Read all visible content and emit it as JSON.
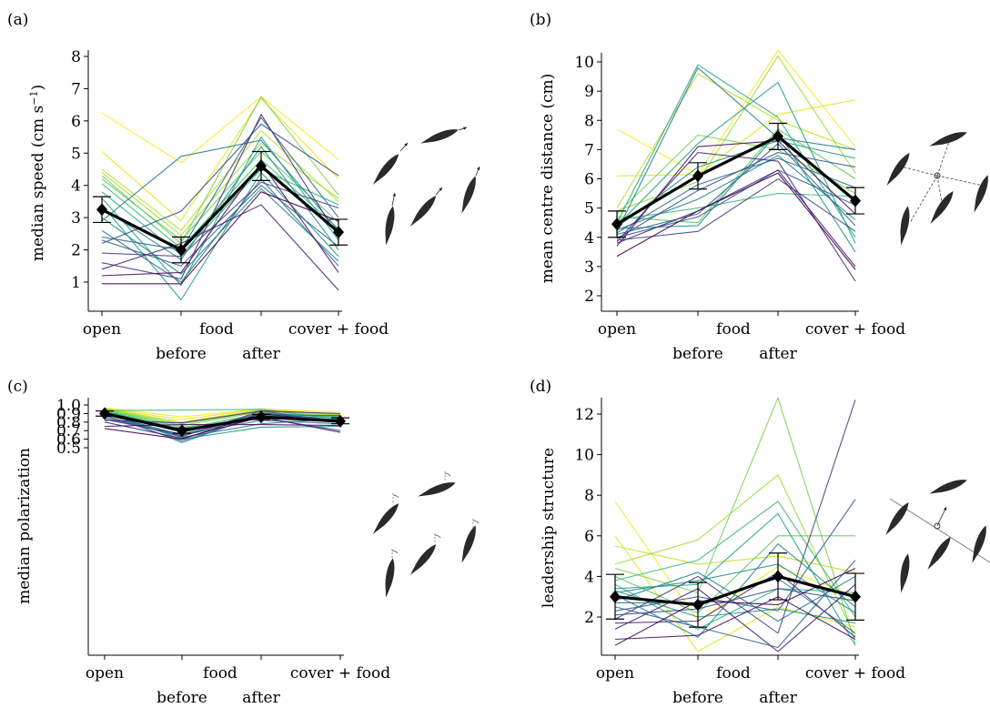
{
  "panel_labels": [
    "(a)",
    "(b)",
    "(c)",
    "(d)"
  ],
  "condition_labels": {
    "open": "open",
    "food": "food",
    "cover_food": "cover + food",
    "before": "before",
    "after": "after"
  },
  "chart_data": [
    {
      "type": "line",
      "panel": "(a)",
      "ylabel": "median speed (cm s−1)",
      "ylabel_main": "median speed (cm s",
      "ylabel_sup": "−1",
      "ylabel_end": ")",
      "categories": [
        "open",
        "before food",
        "after food",
        "cover + food"
      ],
      "yticks": [
        1,
        2,
        3,
        4,
        5,
        6,
        7,
        8
      ],
      "ylim": [
        0.2,
        8.4
      ],
      "mean": {
        "values": [
          3.25,
          2.0,
          4.6,
          2.55
        ],
        "lower": [
          2.85,
          1.6,
          4.15,
          2.15
        ],
        "upper": [
          3.65,
          2.4,
          5.05,
          2.95
        ]
      },
      "series_colors": [
        "#fde725",
        "#e4e419",
        "#bddf26",
        "#a0da39",
        "#7ad151",
        "#5ec962",
        "#3fbc73",
        "#29af7f",
        "#20a486",
        "#1f9a8a",
        "#21918c",
        "#24868e",
        "#287c8e",
        "#2c728e",
        "#31688e",
        "#355f8d",
        "#3b528b",
        "#414487",
        "#46327e",
        "#482475",
        "#471365",
        "#440154"
      ],
      "series": [
        {
          "values": [
            6.25,
            4.7,
            6.75,
            4.8
          ]
        },
        {
          "values": [
            5.05,
            2.9,
            6.7,
            4.2
          ]
        },
        {
          "values": [
            4.5,
            2.6,
            5.7,
            3.5
          ]
        },
        {
          "values": [
            4.4,
            2.45,
            5.3,
            3.6
          ]
        },
        {
          "values": [
            4.3,
            2.2,
            6.75,
            3.7
          ]
        },
        {
          "values": [
            4.2,
            2.3,
            5.05,
            2.85
          ]
        },
        {
          "values": [
            4.05,
            2.05,
            4.8,
            2.65
          ]
        },
        {
          "values": [
            3.8,
            1.85,
            4.5,
            3.4
          ]
        },
        {
          "values": [
            3.6,
            0.9,
            5.5,
            2.3
          ]
        },
        {
          "values": [
            3.4,
            0.45,
            4.4,
            1.8
          ]
        },
        {
          "values": [
            3.3,
            1.7,
            5.2,
            2.0
          ]
        },
        {
          "values": [
            3.0,
            1.25,
            3.9,
            1.65
          ]
        },
        {
          "values": [
            2.9,
            4.9,
            5.4,
            2.6
          ]
        },
        {
          "values": [
            2.6,
            1.0,
            4.2,
            1.5
          ]
        },
        {
          "values": [
            2.4,
            2.0,
            6.1,
            3.0
          ]
        },
        {
          "values": [
            2.3,
            1.5,
            4.0,
            2.1
          ]
        },
        {
          "values": [
            2.2,
            3.2,
            5.9,
            4.3
          ]
        },
        {
          "values": [
            1.9,
            1.8,
            4.1,
            3.3
          ]
        },
        {
          "values": [
            1.6,
            1.1,
            6.2,
            2.4
          ]
        },
        {
          "values": [
            1.4,
            2.2,
            3.4,
            0.75
          ]
        },
        {
          "values": [
            1.2,
            1.3,
            4.7,
            1.3
          ]
        },
        {
          "values": [
            0.95,
            0.95,
            3.8,
            2.9
          ]
        }
      ]
    },
    {
      "type": "line",
      "panel": "(b)",
      "ylabel": "mean centre distance (cm)",
      "categories": [
        "open",
        "before food",
        "after food",
        "cover + food"
      ],
      "yticks": [
        2,
        3,
        4,
        5,
        6,
        7,
        8,
        9,
        10
      ],
      "ylim": [
        1.6,
        10.5
      ],
      "mean": {
        "values": [
          4.45,
          6.1,
          7.45,
          5.25
        ],
        "lower": [
          4.0,
          5.65,
          7.0,
          4.8
        ],
        "upper": [
          4.9,
          6.55,
          7.9,
          5.7
        ]
      },
      "series_colors": [
        "#fde725",
        "#e4e419",
        "#bddf26",
        "#a0da39",
        "#7ad151",
        "#5ec962",
        "#3fbc73",
        "#29af7f",
        "#20a486",
        "#1f9a8a",
        "#21918c",
        "#24868e",
        "#287c8e",
        "#2c728e",
        "#31688e",
        "#355f8d",
        "#3b528b",
        "#414487",
        "#46327e",
        "#482475",
        "#471365",
        "#440154"
      ],
      "series": [
        {
          "values": [
            7.7,
            6.15,
            10.4,
            7.1
          ]
        },
        {
          "values": [
            6.1,
            6.15,
            8.2,
            8.7
          ]
        },
        {
          "values": [
            5.0,
            9.6,
            8.0,
            7.0
          ]
        },
        {
          "values": [
            4.9,
            5.9,
            10.2,
            6.2
          ]
        },
        {
          "values": [
            4.8,
            7.5,
            7.0,
            5.5
          ]
        },
        {
          "values": [
            4.7,
            4.5,
            7.7,
            6.0
          ]
        },
        {
          "values": [
            4.6,
            5.0,
            5.5,
            5.4
          ]
        },
        {
          "values": [
            4.5,
            9.9,
            8.1,
            4.0
          ]
        },
        {
          "values": [
            4.4,
            7.2,
            9.3,
            3.8
          ]
        },
        {
          "values": [
            4.35,
            6.4,
            7.3,
            6.7
          ]
        },
        {
          "values": [
            4.3,
            4.4,
            7.6,
            3.5
          ]
        },
        {
          "values": [
            4.25,
            5.3,
            6.8,
            4.6
          ]
        },
        {
          "values": [
            4.2,
            9.8,
            7.4,
            7.0
          ]
        },
        {
          "values": [
            4.15,
            5.8,
            6.7,
            5.7
          ]
        },
        {
          "values": [
            4.1,
            4.8,
            7.2,
            4.4
          ]
        },
        {
          "values": [
            4.0,
            4.7,
            6.3,
            5.1
          ]
        },
        {
          "values": [
            3.95,
            5.6,
            6.9,
            6.4
          ]
        },
        {
          "values": [
            3.9,
            4.2,
            6.0,
            4.2
          ]
        },
        {
          "values": [
            3.85,
            6.9,
            6.6,
            2.5
          ]
        },
        {
          "values": [
            3.8,
            4.9,
            6.3,
            3.0
          ]
        },
        {
          "values": [
            3.7,
            7.1,
            7.3,
            4.8
          ]
        },
        {
          "values": [
            3.35,
            4.9,
            6.2,
            2.9
          ]
        }
      ]
    },
    {
      "type": "line",
      "panel": "(c)",
      "ylabel": "median polarization",
      "categories": [
        "open",
        "before food",
        "after food",
        "cover + food"
      ],
      "yticks": [
        0.5,
        0.6,
        0.7,
        0.8,
        0.9,
        1.0
      ],
      "ytick_labels": [
        "0.5",
        "0.6",
        "0.7",
        "0.8",
        "0.9",
        "1.0"
      ],
      "ylim": [
        0.47,
        1.03
      ],
      "mean": {
        "values": [
          0.9,
          0.7,
          0.86,
          0.81
        ],
        "lower": [
          0.87,
          0.67,
          0.83,
          0.78
        ],
        "upper": [
          0.93,
          0.73,
          0.89,
          0.85
        ]
      },
      "series_colors": [
        "#fde725",
        "#e4e419",
        "#bddf26",
        "#a0da39",
        "#7ad151",
        "#5ec962",
        "#3fbc73",
        "#29af7f",
        "#20a486",
        "#1f9a8a",
        "#21918c",
        "#24868e",
        "#287c8e",
        "#2c728e",
        "#31688e",
        "#355f8d",
        "#3b528b",
        "#414487",
        "#46327e",
        "#482475",
        "#471365",
        "#440154"
      ],
      "series": [
        {
          "values": [
            0.965,
            0.86,
            0.955,
            0.915
          ]
        },
        {
          "values": [
            0.96,
            0.83,
            0.95,
            0.89
          ]
        },
        {
          "values": [
            0.955,
            0.8,
            0.94,
            0.88
          ]
        },
        {
          "values": [
            0.95,
            0.78,
            0.93,
            0.87
          ]
        },
        {
          "values": [
            0.945,
            0.76,
            0.92,
            0.85
          ]
        },
        {
          "values": [
            0.94,
            0.74,
            0.84,
            0.82
          ]
        },
        {
          "values": [
            0.935,
            0.94,
            0.95,
            0.83
          ]
        },
        {
          "values": [
            0.93,
            0.72,
            0.9,
            0.87
          ]
        },
        {
          "values": [
            0.925,
            0.7,
            0.88,
            0.8
          ]
        },
        {
          "values": [
            0.92,
            0.56,
            0.89,
            0.79
          ]
        },
        {
          "values": [
            0.915,
            0.6,
            0.74,
            0.75
          ]
        },
        {
          "values": [
            0.91,
            0.68,
            0.86,
            0.86
          ]
        },
        {
          "values": [
            0.9,
            0.62,
            0.78,
            0.84
          ]
        },
        {
          "values": [
            0.89,
            0.65,
            0.82,
            0.78
          ]
        },
        {
          "values": [
            0.88,
            0.58,
            0.87,
            0.88
          ]
        },
        {
          "values": [
            0.87,
            0.63,
            0.93,
            0.8
          ]
        },
        {
          "values": [
            0.85,
            0.64,
            0.91,
            0.82
          ]
        },
        {
          "values": [
            0.83,
            0.66,
            0.85,
            0.7
          ]
        },
        {
          "values": [
            0.82,
            0.79,
            0.93,
            0.9
          ]
        },
        {
          "values": [
            0.8,
            0.61,
            0.86,
            0.68
          ]
        },
        {
          "values": [
            0.75,
            0.77,
            0.77,
            0.76
          ]
        },
        {
          "values": [
            0.725,
            0.6,
            0.9,
            0.8
          ]
        }
      ]
    },
    {
      "type": "line",
      "panel": "(d)",
      "ylabel": "leadership structure",
      "categories": [
        "open",
        "before food",
        "after food",
        "cover + food"
      ],
      "yticks": [
        2,
        4,
        6,
        8,
        10,
        12
      ],
      "ylim": [
        0,
        13
      ],
      "mean": {
        "values": [
          3.0,
          2.6,
          4.0,
          3.0
        ],
        "lower": [
          1.9,
          1.5,
          2.85,
          1.85
        ],
        "upper": [
          4.1,
          3.7,
          5.15,
          4.15
        ]
      },
      "series_colors": [
        "#fde725",
        "#e4e419",
        "#bddf26",
        "#a0da39",
        "#7ad151",
        "#5ec962",
        "#3fbc73",
        "#29af7f",
        "#20a486",
        "#1f9a8a",
        "#21918c",
        "#24868e",
        "#287c8e",
        "#2c728e",
        "#31688e",
        "#355f8d",
        "#3b528b",
        "#414487",
        "#46327e",
        "#482475",
        "#471365",
        "#440154"
      ],
      "series": [
        {
          "values": [
            7.7,
            1.8,
            4.5,
            3.0
          ]
        },
        {
          "values": [
            6.0,
            0.3,
            2.5,
            1.5
          ]
        },
        {
          "values": [
            5.5,
            4.6,
            5.0,
            4.2
          ]
        },
        {
          "values": [
            4.6,
            5.8,
            9.0,
            1.0
          ]
        },
        {
          "values": [
            4.4,
            3.2,
            12.8,
            0.7
          ]
        },
        {
          "values": [
            4.0,
            2.2,
            6.0,
            6.0
          ]
        },
        {
          "values": [
            3.8,
            4.8,
            7.7,
            2.0
          ]
        },
        {
          "values": [
            3.6,
            1.4,
            3.4,
            3.2
          ]
        },
        {
          "values": [
            3.4,
            3.6,
            7.1,
            0.6
          ]
        },
        {
          "values": [
            3.3,
            2.0,
            2.4,
            1.7
          ]
        },
        {
          "values": [
            3.2,
            3.8,
            4.6,
            2.2
          ]
        },
        {
          "values": [
            3.1,
            1.0,
            5.6,
            2.5
          ]
        },
        {
          "values": [
            2.8,
            4.2,
            1.8,
            4.0
          ]
        },
        {
          "values": [
            2.7,
            2.7,
            3.9,
            1.2
          ]
        },
        {
          "values": [
            2.5,
            1.5,
            0.5,
            4.8
          ]
        },
        {
          "values": [
            2.3,
            3.0,
            2.3,
            7.8
          ]
        },
        {
          "values": [
            2.1,
            2.4,
            3.4,
            2.8
          ]
        },
        {
          "values": [
            1.9,
            4.0,
            1.2,
            12.7
          ]
        },
        {
          "values": [
            1.7,
            1.8,
            4.2,
            1.0
          ]
        },
        {
          "values": [
            1.4,
            3.4,
            0.3,
            3.6
          ]
        },
        {
          "values": [
            0.9,
            1.1,
            3.0,
            0.9
          ]
        },
        {
          "values": [
            0.6,
            2.8,
            2.6,
            4.4
          ]
        }
      ]
    }
  ]
}
